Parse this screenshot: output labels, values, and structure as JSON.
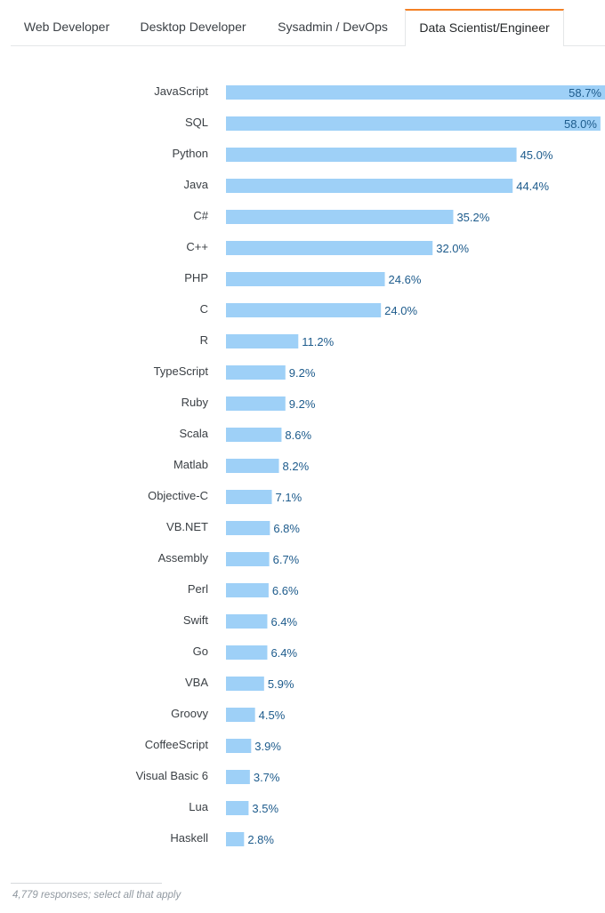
{
  "tabs": [
    {
      "label": "Web Developer",
      "active": false
    },
    {
      "label": "Desktop Developer",
      "active": false
    },
    {
      "label": "Sysadmin / DevOps",
      "active": false
    },
    {
      "label": "Data Scientist/Engineer",
      "active": true
    }
  ],
  "colors": {
    "accent": "#f48024",
    "bar": "#9ed0f7",
    "value_text": "#1d5b8c"
  },
  "chart_data": {
    "type": "bar",
    "orientation": "horizontal",
    "title": "",
    "xlabel": "",
    "ylabel": "",
    "categories": [
      "JavaScript",
      "SQL",
      "Python",
      "Java",
      "C#",
      "C++",
      "PHP",
      "C",
      "R",
      "TypeScript",
      "Ruby",
      "Scala",
      "Matlab",
      "Objective-C",
      "VB.NET",
      "Assembly",
      "Perl",
      "Swift",
      "Go",
      "VBA",
      "Groovy",
      "CoffeeScript",
      "Visual Basic 6",
      "Lua",
      "Haskell"
    ],
    "values": [
      58.7,
      58.0,
      45.0,
      44.4,
      35.2,
      32.0,
      24.6,
      24.0,
      11.2,
      9.2,
      9.2,
      8.6,
      8.2,
      7.1,
      6.8,
      6.7,
      6.6,
      6.4,
      6.4,
      5.9,
      4.5,
      3.9,
      3.7,
      3.5,
      2.8
    ],
    "value_labels": [
      "58.7%",
      "58.0%",
      "45.0%",
      "44.4%",
      "35.2%",
      "32.0%",
      "24.6%",
      "24.0%",
      "11.2%",
      "9.2%",
      "9.2%",
      "8.6%",
      "8.2%",
      "7.1%",
      "6.8%",
      "6.7%",
      "6.6%",
      "6.4%",
      "6.4%",
      "5.9%",
      "4.5%",
      "3.9%",
      "3.7%",
      "3.5%",
      "2.8%"
    ],
    "xlim": [
      0,
      58.7
    ]
  },
  "footer": {
    "note": "4,779 responses; select all that apply"
  }
}
